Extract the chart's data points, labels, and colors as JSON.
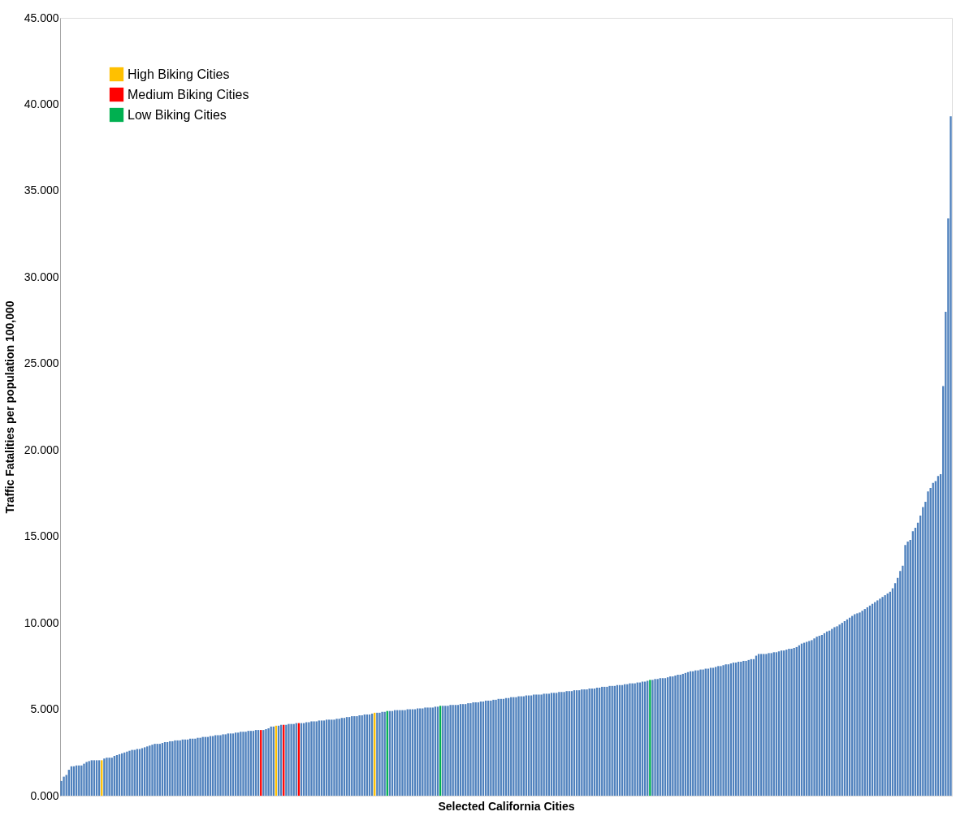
{
  "chart_data": {
    "type": "bar",
    "xlabel": "Selected California Cities",
    "ylabel": "Traffic Fatalities per population  100,000",
    "categories": [
      null,
      null,
      null,
      null,
      null,
      null,
      null,
      null,
      null,
      null,
      null,
      null,
      null,
      null,
      null,
      null,
      null,
      null,
      null,
      null,
      null,
      null,
      null,
      null,
      null,
      null,
      null,
      null,
      null,
      null,
      null,
      null,
      null,
      null,
      null,
      null,
      null,
      null,
      null,
      null,
      null,
      null,
      null,
      null,
      null,
      null,
      null,
      null,
      null,
      null,
      null,
      null,
      null,
      null,
      null,
      null,
      null,
      null,
      null,
      null,
      null,
      null,
      null,
      null,
      null,
      null,
      null,
      null,
      null,
      null,
      null,
      null,
      null,
      null,
      null,
      null,
      null,
      null,
      null,
      null,
      null,
      null,
      null,
      null,
      null,
      null,
      null,
      null,
      null,
      null,
      null,
      null,
      null,
      null,
      null,
      null,
      null,
      null,
      null,
      null,
      null,
      null,
      null,
      null,
      null,
      null,
      null,
      null,
      null,
      null,
      null,
      null,
      null,
      null,
      null,
      null,
      null,
      null,
      null,
      null,
      null,
      null,
      null,
      null,
      null,
      null,
      null,
      null,
      null,
      null,
      null,
      null,
      null,
      null,
      null,
      null,
      null,
      null,
      null,
      null,
      null,
      null,
      null,
      null,
      null,
      null,
      null,
      null,
      null,
      null,
      null,
      null,
      null,
      null,
      null,
      null,
      null,
      null,
      null,
      null,
      null,
      null,
      null,
      null,
      null,
      null,
      null,
      null,
      null,
      null,
      null,
      null,
      null,
      null,
      null,
      null,
      null,
      null,
      null,
      null,
      null,
      null,
      null,
      null,
      null,
      null,
      null,
      null,
      null,
      null,
      null,
      null,
      null,
      null,
      null,
      null,
      null,
      null,
      null,
      null,
      null,
      null,
      null,
      null,
      null,
      null,
      null,
      null,
      null,
      null,
      null,
      null,
      null,
      null,
      null,
      null,
      null,
      null,
      null,
      null,
      null,
      null,
      null,
      null,
      null,
      null,
      null,
      null,
      null,
      null,
      null,
      null,
      null,
      null,
      null,
      null,
      null,
      null,
      null,
      null,
      null,
      null,
      null,
      null,
      null,
      null,
      null,
      null,
      null,
      null,
      null,
      null,
      null,
      null,
      null,
      null,
      null,
      null,
      null,
      null,
      null,
      null,
      null,
      null,
      null,
      null,
      null,
      null,
      null,
      null,
      null,
      null,
      null,
      null,
      null,
      null,
      null,
      null,
      null,
      null,
      null,
      null,
      null,
      null,
      null,
      null,
      null,
      null,
      null,
      null,
      null,
      null,
      null,
      null,
      null,
      null,
      null,
      null,
      null,
      null,
      null,
      null,
      null,
      null,
      null,
      null,
      null,
      null,
      null,
      null,
      null,
      null,
      null,
      null,
      null,
      null,
      null,
      null,
      null,
      null,
      null,
      null,
      null,
      null,
      null,
      null,
      null,
      null,
      null,
      null,
      null,
      null,
      null,
      null,
      null,
      null,
      null,
      null,
      null,
      null,
      null,
      null,
      null,
      null,
      null,
      null,
      null,
      null,
      null,
      null,
      null,
      null,
      null
    ],
    "series": [
      {
        "color": "#4f81bd",
        "values": [
          0.85,
          1.1,
          1.2,
          1.5,
          1.7,
          1.7,
          1.75,
          1.75,
          1.75,
          1.85,
          1.95,
          2.0,
          2.05,
          2.05,
          2.05,
          2.05,
          null,
          2.15,
          2.2,
          2.2,
          2.2,
          2.3,
          2.35,
          2.4,
          2.45,
          2.5,
          2.55,
          2.6,
          2.65,
          2.65,
          2.7,
          2.7,
          2.75,
          2.8,
          2.85,
          2.9,
          2.95,
          3.0,
          3.0,
          3.0,
          3.05,
          3.1,
          3.1,
          3.15,
          3.15,
          3.2,
          3.2,
          3.2,
          3.25,
          3.25,
          3.25,
          3.3,
          3.3,
          3.3,
          3.35,
          3.35,
          3.4,
          3.4,
          3.4,
          3.45,
          3.45,
          3.5,
          3.5,
          3.5,
          3.55,
          3.55,
          3.6,
          3.6,
          3.6,
          3.65,
          3.65,
          3.7,
          3.7,
          3.7,
          3.75,
          3.75,
          3.75,
          3.8,
          3.8,
          null,
          3.8,
          3.85,
          3.9,
          4.0,
          4.0,
          null,
          4.05,
          4.1,
          null,
          4.1,
          4.15,
          4.15,
          4.15,
          4.2,
          null,
          4.2,
          4.2,
          4.25,
          4.25,
          4.3,
          4.3,
          4.3,
          4.35,
          4.35,
          4.35,
          4.4,
          4.4,
          4.4,
          4.4,
          4.45,
          4.45,
          4.5,
          4.5,
          4.55,
          4.55,
          4.6,
          4.6,
          4.6,
          4.65,
          4.65,
          4.7,
          4.7,
          4.7,
          4.75,
          null,
          4.8,
          4.8,
          4.85,
          4.85,
          null,
          4.9,
          4.9,
          4.95,
          4.95,
          4.95,
          4.95,
          4.95,
          5.0,
          5.0,
          5.0,
          5.0,
          5.05,
          5.05,
          5.05,
          5.1,
          5.1,
          5.1,
          5.1,
          5.15,
          5.15,
          null,
          5.2,
          5.2,
          5.2,
          5.25,
          5.25,
          5.25,
          5.25,
          5.3,
          5.3,
          5.3,
          5.35,
          5.35,
          5.4,
          5.4,
          5.4,
          5.45,
          5.45,
          5.5,
          5.5,
          5.5,
          5.55,
          5.55,
          5.6,
          5.6,
          5.6,
          5.65,
          5.65,
          5.7,
          5.7,
          5.7,
          5.75,
          5.75,
          5.75,
          5.8,
          5.8,
          5.8,
          5.85,
          5.85,
          5.85,
          5.85,
          5.9,
          5.9,
          5.9,
          5.95,
          5.95,
          5.95,
          6.0,
          6.0,
          6.0,
          6.05,
          6.05,
          6.05,
          6.1,
          6.1,
          6.1,
          6.15,
          6.15,
          6.15,
          6.2,
          6.2,
          6.2,
          6.25,
          6.25,
          6.3,
          6.3,
          6.3,
          6.35,
          6.35,
          6.35,
          6.4,
          6.4,
          6.4,
          6.45,
          6.45,
          6.5,
          6.5,
          6.5,
          6.55,
          6.55,
          6.6,
          6.6,
          6.65,
          null,
          6.7,
          6.75,
          6.75,
          6.8,
          6.8,
          6.8,
          6.85,
          6.9,
          6.9,
          6.95,
          7.0,
          7.0,
          7.05,
          7.1,
          7.15,
          7.2,
          7.2,
          7.25,
          7.25,
          7.3,
          7.3,
          7.35,
          7.35,
          7.4,
          7.4,
          7.45,
          7.5,
          7.5,
          7.55,
          7.6,
          7.6,
          7.65,
          7.7,
          7.7,
          7.75,
          7.75,
          7.8,
          7.8,
          7.85,
          7.9,
          7.9,
          8.1,
          8.2,
          8.2,
          8.2,
          8.2,
          8.25,
          8.25,
          8.3,
          8.3,
          8.35,
          8.4,
          8.4,
          8.45,
          8.5,
          8.5,
          8.55,
          8.6,
          8.7,
          8.8,
          8.85,
          8.9,
          8.95,
          9.0,
          9.1,
          9.2,
          9.25,
          9.3,
          9.4,
          9.5,
          9.55,
          9.65,
          9.75,
          9.8,
          9.9,
          10.0,
          10.1,
          10.2,
          10.3,
          10.4,
          10.5,
          10.55,
          10.6,
          10.7,
          10.8,
          10.9,
          11.0,
          11.1,
          11.2,
          11.3,
          11.4,
          11.5,
          11.6,
          11.7,
          11.8,
          12.0,
          12.3,
          12.6,
          13.0,
          13.3,
          14.5,
          14.7,
          14.8,
          15.3,
          15.5,
          15.8,
          16.2,
          16.7,
          17.0,
          17.6,
          17.8,
          18.1,
          18.2,
          18.5,
          18.6,
          23.7,
          28.0,
          33.4,
          39.3
        ]
      },
      {
        "name": "High Biking Cities",
        "color": "#ffc000",
        "values": [
          null,
          null,
          null,
          null,
          null,
          null,
          null,
          null,
          null,
          null,
          null,
          null,
          null,
          null,
          null,
          null,
          2.05,
          null,
          null,
          null,
          null,
          null,
          null,
          null,
          null,
          null,
          null,
          null,
          null,
          null,
          null,
          null,
          null,
          null,
          null,
          null,
          null,
          null,
          null,
          null,
          null,
          null,
          null,
          null,
          null,
          null,
          null,
          null,
          null,
          null,
          null,
          null,
          null,
          null,
          null,
          null,
          null,
          null,
          null,
          null,
          null,
          null,
          null,
          null,
          null,
          null,
          null,
          null,
          null,
          null,
          null,
          null,
          null,
          null,
          null,
          null,
          null,
          null,
          null,
          null,
          null,
          null,
          null,
          null,
          null,
          4.05,
          null,
          null,
          null,
          null,
          null,
          null,
          null,
          null,
          null,
          null,
          null,
          null,
          null,
          null,
          null,
          null,
          null,
          null,
          null,
          null,
          null,
          null,
          null,
          null,
          null,
          null,
          null,
          null,
          null,
          null,
          null,
          null,
          null,
          null,
          null,
          null,
          null,
          null,
          4.8,
          null,
          null,
          null,
          null,
          null,
          null,
          null,
          null,
          null,
          null,
          null,
          null,
          null,
          null,
          null,
          null,
          null,
          null,
          null,
          null,
          null,
          null,
          null,
          null,
          null,
          null,
          null,
          null,
          null,
          null,
          null,
          null,
          null,
          null,
          null,
          null,
          null,
          null,
          null,
          null,
          null,
          null,
          null,
          null,
          null,
          null,
          null,
          null,
          null,
          null,
          null,
          null,
          null,
          null,
          null,
          null,
          null,
          null,
          null,
          null,
          null,
          null,
          null,
          null,
          null,
          null,
          null,
          null,
          null,
          null,
          null,
          null,
          null,
          null,
          null,
          null,
          null,
          null,
          null,
          null,
          null,
          null,
          null,
          null,
          null,
          null,
          null,
          null,
          null,
          null,
          null,
          null,
          null,
          null,
          null,
          null,
          null,
          null,
          null,
          null,
          null,
          null,
          null,
          null,
          null,
          null,
          null,
          null,
          null,
          null,
          null,
          null,
          null,
          null,
          null,
          null,
          null,
          null,
          null,
          null,
          null,
          null,
          null,
          null,
          null,
          null,
          null,
          null,
          null,
          null,
          null,
          null,
          null,
          null,
          null,
          null,
          null,
          null,
          null,
          null,
          null,
          null,
          null,
          null,
          null,
          null,
          null,
          null,
          null,
          null,
          null,
          null,
          null,
          null,
          null,
          null,
          null,
          null,
          null,
          null,
          null,
          null,
          null,
          null,
          null,
          null,
          null,
          null,
          null,
          null,
          null,
          null,
          null,
          null,
          null,
          null,
          null,
          null,
          null,
          null,
          null,
          null,
          null,
          null,
          null,
          null,
          null,
          null,
          null,
          null,
          null,
          null,
          null,
          null,
          null,
          null,
          null,
          null,
          null,
          null,
          null,
          null,
          null,
          null,
          null,
          null,
          null,
          null,
          null,
          null,
          null,
          null,
          null,
          null,
          null,
          null,
          null,
          null,
          null,
          null,
          null,
          null,
          null,
          null,
          null,
          null,
          null,
          null
        ]
      },
      {
        "name": "Medium Biking Cities",
        "color": "#ff0000",
        "values": [
          null,
          null,
          null,
          null,
          null,
          null,
          null,
          null,
          null,
          null,
          null,
          null,
          null,
          null,
          null,
          null,
          null,
          null,
          null,
          null,
          null,
          null,
          null,
          null,
          null,
          null,
          null,
          null,
          null,
          null,
          null,
          null,
          null,
          null,
          null,
          null,
          null,
          null,
          null,
          null,
          null,
          null,
          null,
          null,
          null,
          null,
          null,
          null,
          null,
          null,
          null,
          null,
          null,
          null,
          null,
          null,
          null,
          null,
          null,
          null,
          null,
          null,
          null,
          null,
          null,
          null,
          null,
          null,
          null,
          null,
          null,
          null,
          null,
          null,
          null,
          null,
          null,
          null,
          null,
          3.8,
          null,
          null,
          null,
          null,
          null,
          null,
          null,
          null,
          4.1,
          null,
          null,
          null,
          null,
          null,
          4.2,
          null,
          null,
          null,
          null,
          null,
          null,
          null,
          null,
          null,
          null,
          null,
          null,
          null,
          null,
          null,
          null,
          null,
          null,
          null,
          null,
          null,
          null,
          null,
          null,
          null,
          null,
          null,
          null,
          null,
          null,
          null,
          null,
          null,
          null,
          null,
          null,
          null,
          null,
          null,
          null,
          null,
          null,
          null,
          null,
          null,
          null,
          null,
          null,
          null,
          null,
          null,
          null,
          null,
          null,
          null,
          null,
          null,
          null,
          null,
          null,
          null,
          null,
          null,
          null,
          null,
          null,
          null,
          null,
          null,
          null,
          null,
          null,
          null,
          null,
          null,
          null,
          null,
          null,
          null,
          null,
          null,
          null,
          null,
          null,
          null,
          null,
          null,
          null,
          null,
          null,
          null,
          null,
          null,
          null,
          null,
          null,
          null,
          null,
          null,
          null,
          null,
          null,
          null,
          null,
          null,
          null,
          null,
          null,
          null,
          null,
          null,
          null,
          null,
          null,
          null,
          null,
          null,
          null,
          null,
          null,
          null,
          null,
          null,
          null,
          null,
          null,
          null,
          null,
          null,
          null,
          null,
          null,
          null,
          null,
          null,
          null,
          null,
          null,
          null,
          null,
          null,
          null,
          null,
          null,
          null,
          null,
          null,
          null,
          null,
          null,
          null,
          null,
          null,
          null,
          null,
          null,
          null,
          null,
          null,
          null,
          null,
          null,
          null,
          null,
          null,
          null,
          null,
          null,
          null,
          null,
          null,
          null,
          null,
          null,
          null,
          null,
          null,
          null,
          null,
          null,
          null,
          null,
          null,
          null,
          null,
          null,
          null,
          null,
          null,
          null,
          null,
          null,
          null,
          null,
          null,
          null,
          null,
          null,
          null,
          null,
          null,
          null,
          null,
          null,
          null,
          null,
          null,
          null,
          null,
          null,
          null,
          null,
          null,
          null,
          null,
          null,
          null,
          null,
          null,
          null,
          null,
          null,
          null,
          null,
          null,
          null,
          null,
          null,
          null,
          null,
          null,
          null,
          null,
          null,
          null,
          null,
          null,
          null,
          null,
          null,
          null,
          null,
          null,
          null,
          null,
          null,
          null,
          null,
          null,
          null,
          null,
          null,
          null,
          null,
          null,
          null,
          null,
          null
        ]
      },
      {
        "name": "Low Biking Cities",
        "color": "#00b050",
        "values": [
          null,
          null,
          null,
          null,
          null,
          null,
          null,
          null,
          null,
          null,
          null,
          null,
          null,
          null,
          null,
          null,
          null,
          null,
          null,
          null,
          null,
          null,
          null,
          null,
          null,
          null,
          null,
          null,
          null,
          null,
          null,
          null,
          null,
          null,
          null,
          null,
          null,
          null,
          null,
          null,
          null,
          null,
          null,
          null,
          null,
          null,
          null,
          null,
          null,
          null,
          null,
          null,
          null,
          null,
          null,
          null,
          null,
          null,
          null,
          null,
          null,
          null,
          null,
          null,
          null,
          null,
          null,
          null,
          null,
          null,
          null,
          null,
          null,
          null,
          null,
          null,
          null,
          null,
          null,
          null,
          null,
          null,
          null,
          null,
          null,
          null,
          null,
          null,
          null,
          null,
          null,
          null,
          null,
          null,
          null,
          null,
          null,
          null,
          null,
          null,
          null,
          null,
          null,
          null,
          null,
          null,
          null,
          null,
          null,
          null,
          null,
          null,
          null,
          null,
          null,
          null,
          null,
          null,
          null,
          null,
          null,
          null,
          null,
          null,
          null,
          null,
          null,
          null,
          null,
          4.9,
          null,
          null,
          null,
          null,
          null,
          null,
          null,
          null,
          null,
          null,
          null,
          null,
          null,
          null,
          null,
          null,
          null,
          null,
          null,
          null,
          5.2,
          null,
          null,
          null,
          null,
          null,
          null,
          null,
          null,
          null,
          null,
          null,
          null,
          null,
          null,
          null,
          null,
          null,
          null,
          null,
          null,
          null,
          null,
          null,
          null,
          null,
          null,
          null,
          null,
          null,
          null,
          null,
          null,
          null,
          null,
          null,
          null,
          null,
          null,
          null,
          null,
          null,
          null,
          null,
          null,
          null,
          null,
          null,
          null,
          null,
          null,
          null,
          null,
          null,
          null,
          null,
          null,
          null,
          null,
          null,
          null,
          null,
          null,
          null,
          null,
          null,
          null,
          null,
          null,
          null,
          null,
          null,
          null,
          null,
          null,
          null,
          null,
          null,
          null,
          null,
          null,
          null,
          null,
          6.7,
          null,
          null,
          null,
          null,
          null,
          null,
          null,
          null,
          null,
          null,
          null,
          null,
          null,
          null,
          null,
          null,
          null,
          null,
          null,
          null,
          null,
          null,
          null,
          null,
          null,
          null,
          null,
          null,
          null,
          null,
          null,
          null,
          null,
          null,
          null,
          null,
          null,
          null,
          null,
          null,
          null,
          null,
          null,
          null,
          null,
          null,
          null,
          null,
          null,
          null,
          null,
          null,
          null,
          null,
          null,
          null,
          null,
          null,
          null,
          null,
          null,
          null,
          null,
          null,
          null,
          null,
          null,
          null,
          null,
          null,
          null,
          null,
          null,
          null,
          null,
          null,
          null,
          null,
          null,
          null,
          null,
          null,
          null,
          null,
          null,
          null,
          null,
          null,
          null,
          null,
          null,
          null,
          null,
          null,
          null,
          null,
          null,
          null,
          null,
          null,
          null,
          null,
          null,
          null,
          null,
          null,
          null,
          null,
          null,
          null,
          null,
          null,
          null,
          null,
          null,
          null,
          null,
          null,
          null
        ]
      }
    ],
    "ylim": [
      0,
      45
    ],
    "yticks": [
      {
        "value": 0,
        "label": "0.000"
      },
      {
        "value": 5,
        "label": "5.000"
      },
      {
        "value": 10,
        "label": "10.000"
      },
      {
        "value": 15,
        "label": "15.000"
      },
      {
        "value": 20,
        "label": "20.000"
      },
      {
        "value": 25,
        "label": "25.000"
      },
      {
        "value": 30,
        "label": "30.000"
      },
      {
        "value": 35,
        "label": "35.000"
      },
      {
        "value": 40,
        "label": "40.000"
      },
      {
        "value": 45,
        "label": "45.000"
      }
    ],
    "grid": false,
    "legend": "top left"
  }
}
